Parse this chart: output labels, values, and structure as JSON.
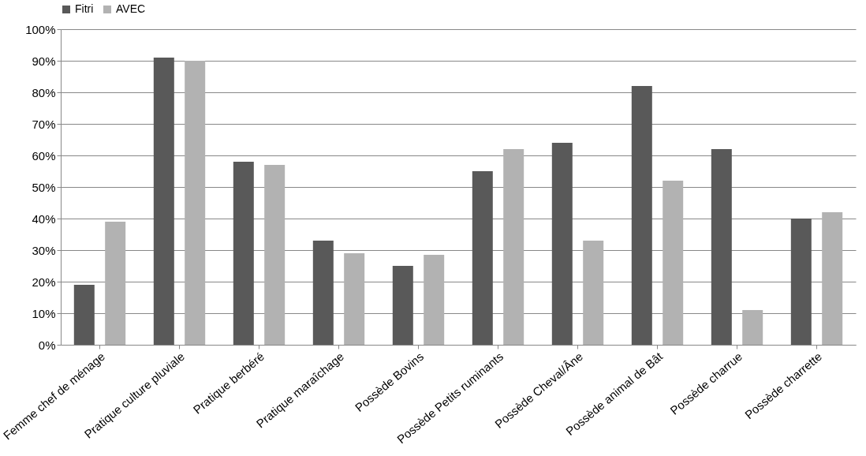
{
  "chart_data": {
    "type": "bar",
    "categories": [
      "Femme chef de ménage",
      "Pratique culture pluviale",
      "Pratique berbéré",
      "Pratique maraîchage",
      "Possède Bovins",
      "Possède Petits ruminants",
      "Possède Cheval/Âne",
      "Possède animal de Bât",
      "Possède charrue",
      "Possède charrette"
    ],
    "series": [
      {
        "name": "Fitri",
        "color": "#595959",
        "values": [
          19,
          91,
          58,
          33,
          25,
          55,
          64,
          82,
          62,
          40
        ]
      },
      {
        "name": "AVEC",
        "color": "#b2b2b2",
        "values": [
          39,
          90,
          57,
          29,
          28.5,
          62,
          33,
          52,
          11,
          42
        ]
      }
    ],
    "ylim": [
      0,
      100
    ],
    "yticks": [
      {
        "value": 0,
        "label": "0%"
      },
      {
        "value": 10,
        "label": "10%"
      },
      {
        "value": 20,
        "label": "20%"
      },
      {
        "value": 30,
        "label": "30%"
      },
      {
        "value": 40,
        "label": "40%"
      },
      {
        "value": 50,
        "label": "50%"
      },
      {
        "value": 60,
        "label": "60%"
      },
      {
        "value": 70,
        "label": "70%"
      },
      {
        "value": 80,
        "label": "80%"
      },
      {
        "value": 90,
        "label": "90%"
      },
      {
        "value": 100,
        "label": "100%"
      }
    ],
    "grid": "y",
    "legend": "top"
  }
}
